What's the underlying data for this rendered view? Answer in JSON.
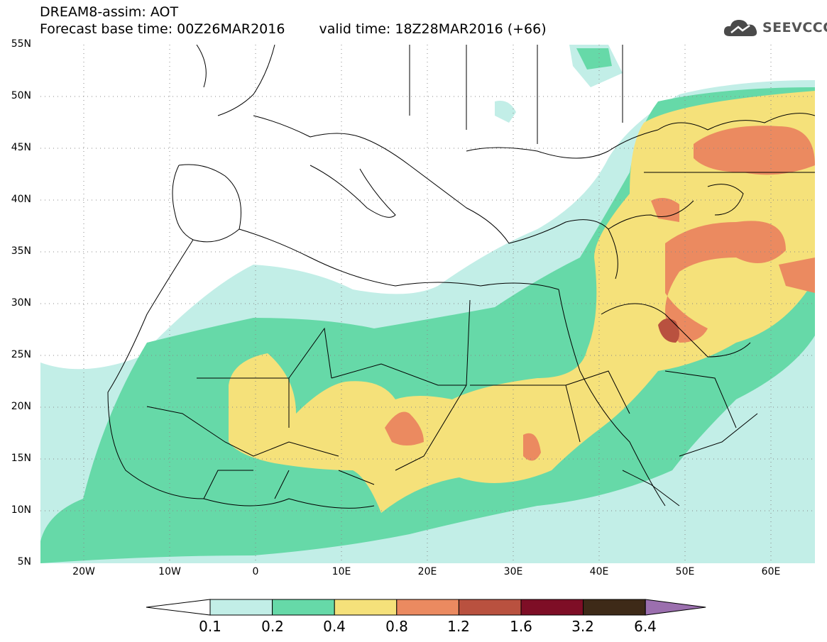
{
  "header": {
    "title_line1": "DREAM8-assim: AOT",
    "base_time": "Forecast base time: 00Z26MAR2016",
    "valid_time": "valid time: 18Z28MAR2016 (+66)"
  },
  "logo": {
    "text": "SEEVCCC",
    "icon": "cloud-icon"
  },
  "map": {
    "lat_labels": [
      "55N",
      "50N",
      "45N",
      "40N",
      "35N",
      "30N",
      "25N",
      "20N",
      "15N",
      "10N",
      "5N"
    ],
    "lon_labels": [
      "20W",
      "10W",
      "0",
      "10E",
      "20E",
      "30E",
      "40E",
      "50E",
      "60E"
    ],
    "lon_range": [
      -25,
      65
    ],
    "lat_range": [
      5,
      55
    ],
    "gridlines": true
  },
  "colorbar": {
    "thresholds": [
      "0.1",
      "0.2",
      "0.4",
      "0.8",
      "1.2",
      "1.6",
      "3.2",
      "6.4"
    ],
    "colors": [
      "#ffffff",
      "#c2eee7",
      "#66d9a8",
      "#f5e17a",
      "#eb8a60",
      "#b9513f",
      "#7e0e26",
      "#3e2a18",
      "#9b6fae"
    ]
  }
}
